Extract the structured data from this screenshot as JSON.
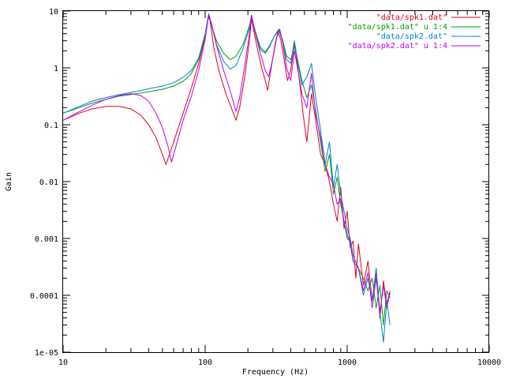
{
  "chart_data": {
    "type": "line",
    "xlabel": "Frequency (Hz)",
    "ylabel": "Gain",
    "xscale": "log",
    "yscale": "log",
    "xlim": [
      10,
      10000
    ],
    "ylim": [
      1e-05,
      10
    ],
    "x_ticks": [
      {
        "value": 10,
        "label": "10"
      },
      {
        "value": 100,
        "label": "100"
      },
      {
        "value": 1000,
        "label": "1000"
      },
      {
        "value": 10000,
        "label": "10000"
      }
    ],
    "y_ticks": [
      {
        "value": 10,
        "label": "10"
      },
      {
        "value": 1,
        "label": "1"
      },
      {
        "value": 0.1,
        "label": "0.1"
      },
      {
        "value": 0.01,
        "label": "0.01"
      },
      {
        "value": 0.001,
        "label": "0.001"
      },
      {
        "value": 0.0001,
        "label": "0.0001"
      },
      {
        "value": 1e-05,
        "label": "1e-05"
      }
    ],
    "grid": false,
    "legend_position": "top-right",
    "series": [
      {
        "name": "\"data/spk1.dat\"",
        "color": "#e0001b",
        "points": [
          [
            10,
            0.12
          ],
          [
            13,
            0.16
          ],
          [
            16,
            0.19
          ],
          [
            20,
            0.21
          ],
          [
            25,
            0.21
          ],
          [
            30,
            0.19
          ],
          [
            35,
            0.15
          ],
          [
            40,
            0.1
          ],
          [
            45,
            0.06
          ],
          [
            50,
            0.03
          ],
          [
            53,
            0.02
          ],
          [
            56,
            0.03
          ],
          [
            60,
            0.05
          ],
          [
            70,
            0.16
          ],
          [
            80,
            0.45
          ],
          [
            90,
            1.2
          ],
          [
            100,
            3.5
          ],
          [
            105,
            8
          ],
          [
            108,
            7
          ],
          [
            115,
            2.3
          ],
          [
            125,
            0.9
          ],
          [
            140,
            0.35
          ],
          [
            155,
            0.18
          ],
          [
            165,
            0.12
          ],
          [
            175,
            0.2
          ],
          [
            190,
            0.7
          ],
          [
            205,
            3
          ],
          [
            212,
            7.5
          ],
          [
            220,
            4.5
          ],
          [
            235,
            2
          ],
          [
            250,
            1.0
          ],
          [
            265,
            0.6
          ],
          [
            275,
            0.4
          ],
          [
            290,
            0.9
          ],
          [
            310,
            2.5
          ],
          [
            325,
            4.3
          ],
          [
            340,
            3.2
          ],
          [
            360,
            1.4
          ],
          [
            380,
            0.6
          ],
          [
            400,
            0.9
          ],
          [
            425,
            2.6
          ],
          [
            440,
            1.5
          ],
          [
            470,
            0.4
          ],
          [
            490,
            0.15
          ],
          [
            520,
            0.05
          ],
          [
            560,
            0.35
          ],
          [
            600,
            0.12
          ],
          [
            650,
            0.03
          ],
          [
            700,
            0.02
          ],
          [
            750,
            0.01
          ],
          [
            800,
            0.004
          ],
          [
            850,
            0.002
          ],
          [
            900,
            0.008
          ],
          [
            950,
            0.0015
          ],
          [
            1000,
            0.003
          ],
          [
            1050,
            0.0007
          ],
          [
            1100,
            0.0009
          ],
          [
            1150,
            0.0002
          ],
          [
            1200,
            0.0008
          ],
          [
            1300,
            0.00015
          ],
          [
            1400,
            0.0004
          ],
          [
            1500,
            8e-05
          ],
          [
            1600,
            0.00025
          ],
          [
            1700,
            4e-05
          ],
          [
            1800,
            0.00018
          ],
          [
            1900,
            7e-05
          ],
          [
            2000,
            0.00012
          ]
        ]
      },
      {
        "name": "\"data/spk1.dat\" u 1:4",
        "color": "#00a000",
        "points": [
          [
            10,
            0.16
          ],
          [
            13,
            0.2
          ],
          [
            16,
            0.24
          ],
          [
            20,
            0.28
          ],
          [
            25,
            0.32
          ],
          [
            30,
            0.34
          ],
          [
            35,
            0.36
          ],
          [
            40,
            0.38
          ],
          [
            50,
            0.42
          ],
          [
            60,
            0.48
          ],
          [
            70,
            0.58
          ],
          [
            80,
            0.8
          ],
          [
            90,
            1.4
          ],
          [
            100,
            3.8
          ],
          [
            106,
            8.5
          ],
          [
            110,
            6
          ],
          [
            120,
            3
          ],
          [
            135,
            1.8
          ],
          [
            150,
            1.4
          ],
          [
            165,
            1.6
          ],
          [
            185,
            2.6
          ],
          [
            205,
            5.5
          ],
          [
            212,
            8
          ],
          [
            225,
            4.5
          ],
          [
            245,
            2.3
          ],
          [
            265,
            1.9
          ],
          [
            285,
            2.5
          ],
          [
            310,
            3.8
          ],
          [
            330,
            4.5
          ],
          [
            350,
            3.2
          ],
          [
            375,
            1.6
          ],
          [
            400,
            1.4
          ],
          [
            425,
            2.4
          ],
          [
            450,
            1.3
          ],
          [
            480,
            0.6
          ],
          [
            520,
            0.3
          ],
          [
            560,
            0.5
          ],
          [
            600,
            0.18
          ],
          [
            650,
            0.05
          ],
          [
            700,
            0.015
          ],
          [
            750,
            0.03
          ],
          [
            800,
            0.006
          ],
          [
            850,
            0.012
          ],
          [
            900,
            0.004
          ],
          [
            950,
            0.002
          ],
          [
            1000,
            0.001
          ],
          [
            1050,
            0.0009
          ],
          [
            1100,
            0.0004
          ],
          [
            1200,
            0.0003
          ],
          [
            1300,
            0.0002
          ],
          [
            1400,
            0.00012
          ],
          [
            1500,
            0.0002
          ],
          [
            1600,
            6e-05
          ],
          [
            1700,
            0.00015
          ],
          [
            1800,
            3e-05
          ],
          [
            1900,
            0.00012
          ],
          [
            2000,
            9e-05
          ]
        ]
      },
      {
        "name": "\"data/spk2.dat\"",
        "color": "#0080d0",
        "points": [
          [
            10,
            0.16
          ],
          [
            13,
            0.21
          ],
          [
            16,
            0.26
          ],
          [
            20,
            0.3
          ],
          [
            25,
            0.34
          ],
          [
            30,
            0.37
          ],
          [
            35,
            0.4
          ],
          [
            40,
            0.43
          ],
          [
            50,
            0.48
          ],
          [
            60,
            0.55
          ],
          [
            70,
            0.68
          ],
          [
            80,
            0.9
          ],
          [
            90,
            1.5
          ],
          [
            100,
            4
          ],
          [
            106,
            9
          ],
          [
            110,
            6
          ],
          [
            120,
            2.6
          ],
          [
            135,
            1.3
          ],
          [
            150,
            0.95
          ],
          [
            165,
            1.1
          ],
          [
            185,
            2.2
          ],
          [
            205,
            5
          ],
          [
            212,
            8.5
          ],
          [
            225,
            4.2
          ],
          [
            245,
            2.1
          ],
          [
            265,
            1.8
          ],
          [
            285,
            2.4
          ],
          [
            310,
            3.8
          ],
          [
            330,
            4.8
          ],
          [
            350,
            3
          ],
          [
            375,
            1.4
          ],
          [
            400,
            1.2
          ],
          [
            425,
            3
          ],
          [
            450,
            1.2
          ],
          [
            480,
            0.5
          ],
          [
            520,
            0.7
          ],
          [
            560,
            1.2
          ],
          [
            600,
            0.3
          ],
          [
            650,
            0.08
          ],
          [
            700,
            0.02
          ],
          [
            750,
            0.05
          ],
          [
            800,
            0.008
          ],
          [
            850,
            0.02
          ],
          [
            900,
            0.006
          ],
          [
            950,
            0.003
          ],
          [
            1000,
            0.0015
          ],
          [
            1050,
            0.001
          ],
          [
            1100,
            0.0005
          ],
          [
            1200,
            0.0003
          ],
          [
            1300,
            0.0001
          ],
          [
            1400,
            0.0002
          ],
          [
            1500,
            8e-05
          ],
          [
            1600,
            0.0003
          ],
          [
            1700,
            5e-05
          ],
          [
            1800,
            1.5e-05
          ],
          [
            1900,
            8e-05
          ],
          [
            2000,
            3e-05
          ]
        ]
      },
      {
        "name": "\"data/spk2.dat\" u 1:4",
        "color": "#c000ff",
        "points": [
          [
            10,
            0.12
          ],
          [
            13,
            0.17
          ],
          [
            16,
            0.22
          ],
          [
            20,
            0.28
          ],
          [
            25,
            0.33
          ],
          [
            30,
            0.35
          ],
          [
            35,
            0.33
          ],
          [
            40,
            0.26
          ],
          [
            45,
            0.16
          ],
          [
            50,
            0.09
          ],
          [
            55,
            0.04
          ],
          [
            58,
            0.022
          ],
          [
            62,
            0.04
          ],
          [
            70,
            0.12
          ],
          [
            80,
            0.32
          ],
          [
            90,
            0.9
          ],
          [
            100,
            3.2
          ],
          [
            106,
            8.5
          ],
          [
            110,
            6.5
          ],
          [
            120,
            2.5
          ],
          [
            135,
            0.9
          ],
          [
            150,
            0.4
          ],
          [
            165,
            0.17
          ],
          [
            175,
            0.3
          ],
          [
            190,
            1.1
          ],
          [
            205,
            4
          ],
          [
            212,
            8.5
          ],
          [
            225,
            4.2
          ],
          [
            245,
            1.8
          ],
          [
            265,
            0.9
          ],
          [
            280,
            0.7
          ],
          [
            300,
            1.5
          ],
          [
            320,
            3.5
          ],
          [
            335,
            4.8
          ],
          [
            350,
            3
          ],
          [
            375,
            1
          ],
          [
            400,
            0.6
          ],
          [
            425,
            2
          ],
          [
            450,
            0.9
          ],
          [
            480,
            0.35
          ],
          [
            520,
            0.2
          ],
          [
            560,
            0.8
          ],
          [
            600,
            0.15
          ],
          [
            650,
            0.06
          ],
          [
            700,
            0.02
          ],
          [
            750,
            0.012
          ],
          [
            800,
            0.009
          ],
          [
            850,
            0.004
          ],
          [
            900,
            0.005
          ],
          [
            950,
            0.002
          ],
          [
            1000,
            0.0012
          ],
          [
            1050,
            0.0008
          ],
          [
            1100,
            0.0004
          ],
          [
            1200,
            0.0003
          ],
          [
            1300,
            0.00012
          ],
          [
            1400,
            0.00025
          ],
          [
            1500,
            6e-05
          ],
          [
            1600,
            0.0002
          ],
          [
            1700,
            5e-05
          ],
          [
            1800,
            0.00015
          ],
          [
            1900,
            6e-05
          ],
          [
            2000,
            0.00011
          ]
        ]
      }
    ]
  }
}
